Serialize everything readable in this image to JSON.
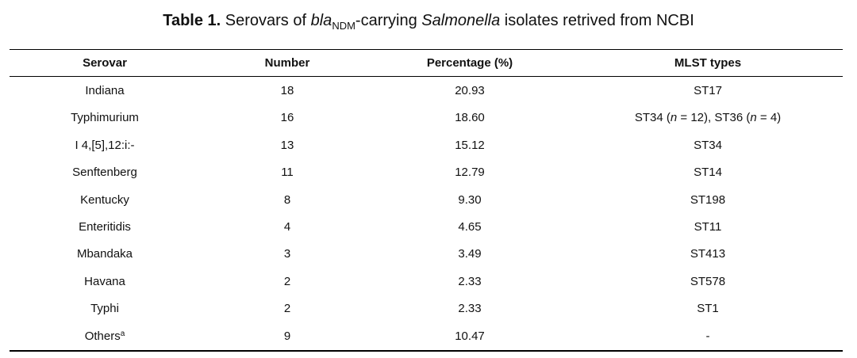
{
  "caption": {
    "label": "Table 1.",
    "pre": "Serovars of",
    "gene": "bla",
    "gene_sub": "NDM",
    "mid": "-carrying",
    "genus": "Salmonella",
    "post": "isolates retrived from NCBI"
  },
  "table": {
    "headers": [
      "Serovar",
      "Number",
      "Percentage (%)",
      "MLST types"
    ],
    "rows": [
      {
        "serovar": "Indiana",
        "number": "18",
        "percentage": "20.93",
        "mlst": "ST17"
      },
      {
        "serovar": "Typhimurium",
        "number": "16",
        "percentage": "18.60",
        "mlst": "ST34 (n = 12), ST36 (n = 4)"
      },
      {
        "serovar": "I 4,[5],12:i:-",
        "number": "13",
        "percentage": "15.12",
        "mlst": "ST34"
      },
      {
        "serovar": "Senftenberg",
        "number": "11",
        "percentage": "12.79",
        "mlst": "ST14"
      },
      {
        "serovar": "Kentucky",
        "number": "8",
        "percentage": "9.30",
        "mlst": "ST198"
      },
      {
        "serovar": "Enteritidis",
        "number": "4",
        "percentage": "4.65",
        "mlst": "ST11"
      },
      {
        "serovar": "Mbandaka",
        "number": "3",
        "percentage": "3.49",
        "mlst": "ST413"
      },
      {
        "serovar": "Havana",
        "number": "2",
        "percentage": "2.33",
        "mlst": "ST578"
      },
      {
        "serovar": "Typhi",
        "number": "2",
        "percentage": "2.33",
        "mlst": "ST1"
      },
      {
        "serovar": "Others",
        "serovar_note": "a",
        "number": "9",
        "percentage": "10.47",
        "mlst": "-"
      }
    ]
  }
}
